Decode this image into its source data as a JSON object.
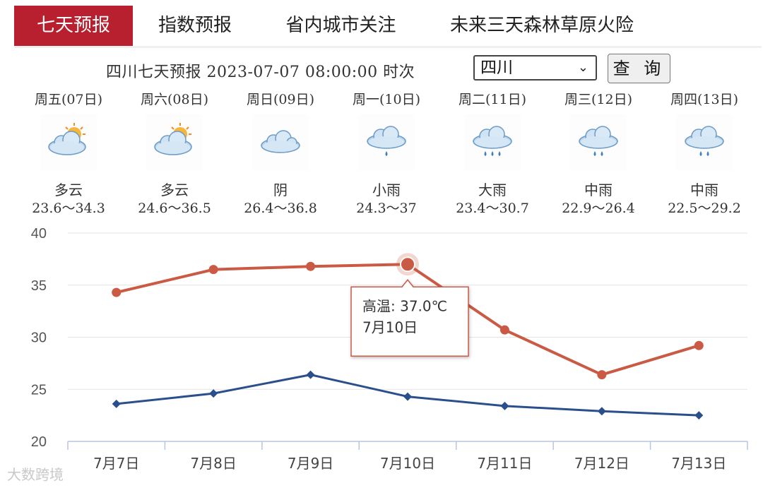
{
  "tabs": [
    {
      "label": "七天预报",
      "active": true
    },
    {
      "label": "指数预报",
      "active": false
    },
    {
      "label": "省内城市关注",
      "active": false
    },
    {
      "label": "未来三天森林草原火险",
      "active": false
    }
  ],
  "query": {
    "text": "四川七天预报 2023-07-07 08:00:00 时次",
    "region_value": "四川",
    "button_label": "查 询"
  },
  "days": [
    {
      "weekday": "周五(07日)",
      "condition": "多云",
      "range": "23.6～34.3",
      "icon": "partly-cloudy-icon"
    },
    {
      "weekday": "周六(08日)",
      "condition": "多云",
      "range": "24.6～36.5",
      "icon": "partly-cloudy-icon"
    },
    {
      "weekday": "周日(09日)",
      "condition": "阴",
      "range": "26.4～36.8",
      "icon": "overcast-icon"
    },
    {
      "weekday": "周一(10日)",
      "condition": "小雨",
      "range": "24.3～37",
      "icon": "light-rain-icon"
    },
    {
      "weekday": "周二(11日)",
      "condition": "大雨",
      "range": "23.4～30.7",
      "icon": "heavy-rain-icon"
    },
    {
      "weekday": "周三(12日)",
      "condition": "中雨",
      "range": "22.9～26.4",
      "icon": "moderate-rain-icon"
    },
    {
      "weekday": "周四(13日)",
      "condition": "中雨",
      "range": "22.5～29.2",
      "icon": "moderate-rain-icon"
    }
  ],
  "chart_data": {
    "type": "line",
    "categories": [
      "7月7日",
      "7月8日",
      "7月9日",
      "7月10日",
      "7月11日",
      "7月12日",
      "7月13日"
    ],
    "series": [
      {
        "name": "高温",
        "values": [
          34.3,
          36.5,
          36.8,
          37.0,
          30.7,
          26.4,
          29.2
        ],
        "color": "#cb5a45",
        "marker": "circle"
      },
      {
        "name": "",
        "values": [
          23.6,
          24.6,
          26.4,
          24.3,
          23.4,
          22.9,
          22.5
        ],
        "color": "#2b4f8c",
        "marker": "diamond"
      }
    ],
    "ylim": [
      20,
      40
    ],
    "yticks": [
      "20",
      "25",
      "30",
      "35",
      "40"
    ],
    "grid": true,
    "tooltip": {
      "line1": "高温: 37.0℃",
      "line2": "7月10日",
      "index": 3,
      "series": 0
    }
  },
  "watermark": "大数跨境",
  "colors": {
    "accent": "#b9202f",
    "high": "#cb5a45",
    "low": "#2b4f8c"
  }
}
